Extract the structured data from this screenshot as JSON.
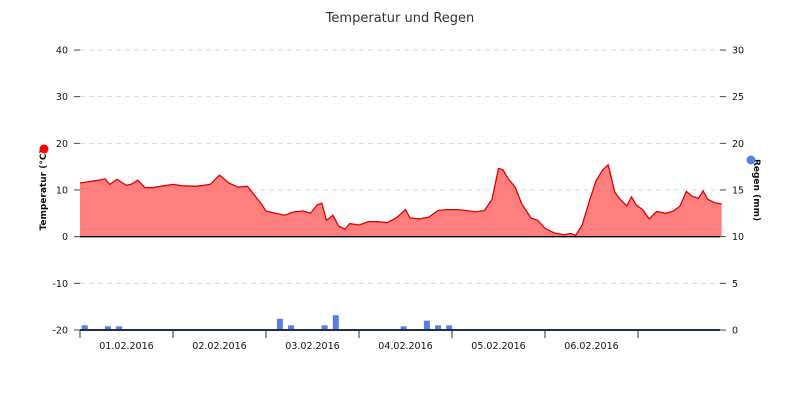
{
  "chart_data": {
    "type": "area",
    "title": "Temperatur und Regen",
    "y_left": {
      "label": "Temperatur (°C)",
      "ticks": [
        -20,
        -10,
        0,
        10,
        20,
        30,
        40
      ],
      "range": [
        -20,
        40
      ],
      "marker_color": "#ff0000"
    },
    "y_right": {
      "label": "Regen (mm)",
      "ticks": [
        0,
        5,
        10,
        15,
        20,
        25,
        30
      ],
      "range": [
        0,
        30
      ],
      "marker_color": "#5b7ee5"
    },
    "x": {
      "range_days": [
        0,
        6.9
      ],
      "tick_labels": [
        "01.02.2016",
        "02.02.2016",
        "03.02.2016",
        "04.02.2016",
        "05.02.2016",
        "06.02.2016"
      ]
    },
    "grid": true,
    "colors": {
      "temperature_line": "#dd0000",
      "temperature_fill": "#ff7f7f",
      "rain_bar": "#5b7ee5",
      "x_axis": "#1f2d4c"
    },
    "series": [
      {
        "name": "Temperatur",
        "unit": "°C",
        "points": [
          [
            0.0,
            11.5
          ],
          [
            0.1,
            11.8
          ],
          [
            0.2,
            12.1
          ],
          [
            0.27,
            12.4
          ],
          [
            0.32,
            11.2
          ],
          [
            0.4,
            12.3
          ],
          [
            0.45,
            11.6
          ],
          [
            0.5,
            11.0
          ],
          [
            0.56,
            11.3
          ],
          [
            0.62,
            12.1
          ],
          [
            0.7,
            10.5
          ],
          [
            0.78,
            10.5
          ],
          [
            0.9,
            10.9
          ],
          [
            1.0,
            11.2
          ],
          [
            1.1,
            10.9
          ],
          [
            1.25,
            10.8
          ],
          [
            1.4,
            11.2
          ],
          [
            1.5,
            13.2
          ],
          [
            1.6,
            11.5
          ],
          [
            1.7,
            10.6
          ],
          [
            1.8,
            10.8
          ],
          [
            1.95,
            7.0
          ],
          [
            2.0,
            5.5
          ],
          [
            2.1,
            5.0
          ],
          [
            2.2,
            4.6
          ],
          [
            2.3,
            5.3
          ],
          [
            2.4,
            5.5
          ],
          [
            2.48,
            5.0
          ],
          [
            2.55,
            6.8
          ],
          [
            2.6,
            7.2
          ],
          [
            2.65,
            3.5
          ],
          [
            2.72,
            4.6
          ],
          [
            2.78,
            2.3
          ],
          [
            2.85,
            1.6
          ],
          [
            2.9,
            2.8
          ],
          [
            3.0,
            2.5
          ],
          [
            3.1,
            3.2
          ],
          [
            3.2,
            3.2
          ],
          [
            3.3,
            3.0
          ],
          [
            3.4,
            4.0
          ],
          [
            3.5,
            5.8
          ],
          [
            3.55,
            4.0
          ],
          [
            3.65,
            3.8
          ],
          [
            3.75,
            4.2
          ],
          [
            3.85,
            5.6
          ],
          [
            3.95,
            5.8
          ],
          [
            4.05,
            5.8
          ],
          [
            4.15,
            5.6
          ],
          [
            4.25,
            5.3
          ],
          [
            4.35,
            5.6
          ],
          [
            4.43,
            8.0
          ],
          [
            4.5,
            14.6
          ],
          [
            4.55,
            14.3
          ],
          [
            4.6,
            12.5
          ],
          [
            4.68,
            10.6
          ],
          [
            4.75,
            7.0
          ],
          [
            4.85,
            4.0
          ],
          [
            4.92,
            3.5
          ],
          [
            5.0,
            1.8
          ],
          [
            5.1,
            0.8
          ],
          [
            5.2,
            0.4
          ],
          [
            5.28,
            0.7
          ],
          [
            5.33,
            0.3
          ],
          [
            5.4,
            2.5
          ],
          [
            5.48,
            7.8
          ],
          [
            5.55,
            12.0
          ],
          [
            5.62,
            14.3
          ],
          [
            5.68,
            15.4
          ],
          [
            5.75,
            9.5
          ],
          [
            5.8,
            8.2
          ],
          [
            5.88,
            6.6
          ],
          [
            5.93,
            8.5
          ],
          [
            5.98,
            6.8
          ],
          [
            6.05,
            5.8
          ],
          [
            6.12,
            3.8
          ],
          [
            6.2,
            5.4
          ],
          [
            6.3,
            5.0
          ],
          [
            6.38,
            5.5
          ],
          [
            6.45,
            6.5
          ],
          [
            6.52,
            9.7
          ],
          [
            6.58,
            8.7
          ],
          [
            6.65,
            8.2
          ],
          [
            6.7,
            9.8
          ],
          [
            6.75,
            8.0
          ],
          [
            6.82,
            7.3
          ],
          [
            6.9,
            7.0
          ]
        ]
      },
      {
        "name": "Regen",
        "unit": "mm",
        "bars": [
          [
            0.05,
            0.5
          ],
          [
            0.3,
            0.4
          ],
          [
            0.42,
            0.4
          ],
          [
            2.15,
            1.2
          ],
          [
            2.27,
            0.5
          ],
          [
            2.63,
            0.5
          ],
          [
            2.75,
            1.6
          ],
          [
            3.48,
            0.4
          ],
          [
            3.73,
            1.0
          ],
          [
            3.85,
            0.5
          ],
          [
            3.97,
            0.5
          ]
        ]
      }
    ]
  }
}
